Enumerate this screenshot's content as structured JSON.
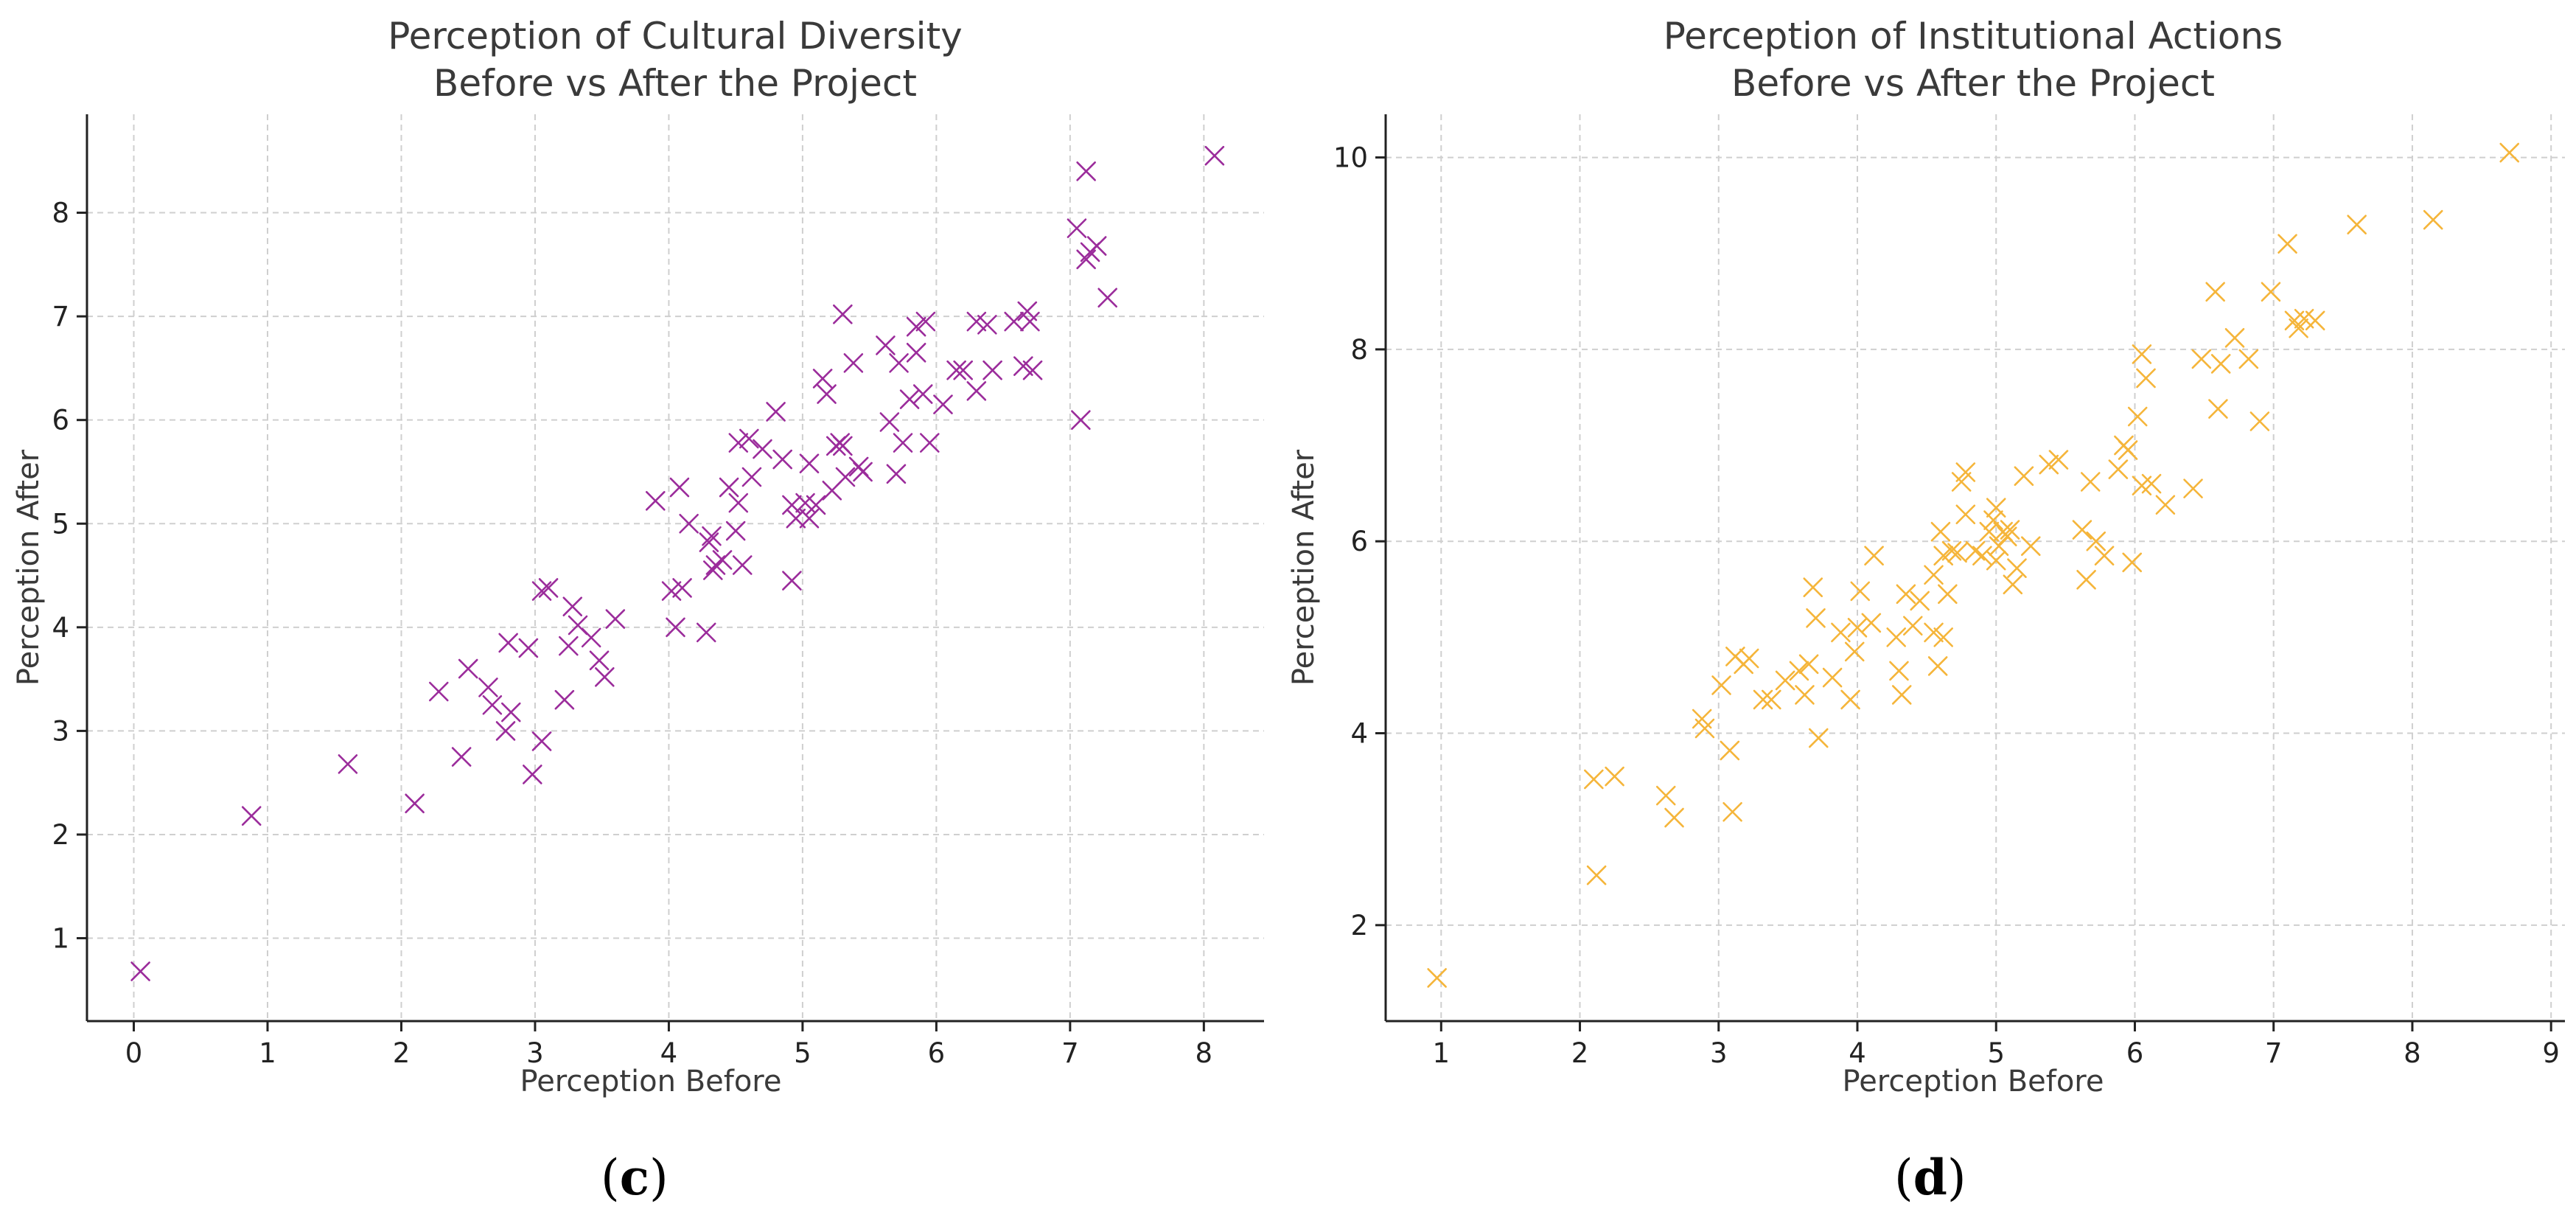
{
  "chart_data": [
    {
      "id": "c",
      "type": "scatter",
      "panel_label": "c",
      "title": "Perception of Cultural Diversity",
      "subtitle": "Before vs After the Project",
      "xlabel": "Perception Before",
      "ylabel": "Perception After",
      "xlim": [
        -0.35,
        8.45
      ],
      "ylim": [
        0.2,
        8.95
      ],
      "xticks": [
        0,
        1,
        2,
        3,
        4,
        5,
        6,
        7,
        8
      ],
      "yticks": [
        1,
        2,
        3,
        4,
        5,
        6,
        7,
        8
      ],
      "grid": true,
      "marker": "x",
      "color": "#9b2c9b",
      "x": [
        0.05,
        0.88,
        1.6,
        2.1,
        2.28,
        2.45,
        2.5,
        2.65,
        2.68,
        2.78,
        2.8,
        2.82,
        2.95,
        2.98,
        3.05,
        3.05,
        3.1,
        3.22,
        3.25,
        3.28,
        3.32,
        3.42,
        3.48,
        3.52,
        3.6,
        3.9,
        4.02,
        4.05,
        4.08,
        4.1,
        4.15,
        4.28,
        4.3,
        4.32,
        4.33,
        4.35,
        4.4,
        4.45,
        4.5,
        4.52,
        4.52,
        4.55,
        4.6,
        4.62,
        4.7,
        4.8,
        4.85,
        4.92,
        4.92,
        4.95,
        5.02,
        5.05,
        5.05,
        5.1,
        5.15,
        5.18,
        5.22,
        5.25,
        5.28,
        5.3,
        5.3,
        5.32,
        5.38,
        5.42,
        5.45,
        5.62,
        5.65,
        5.7,
        5.72,
        5.75,
        5.8,
        5.85,
        5.85,
        5.9,
        5.92,
        5.95,
        6.05,
        6.15,
        6.2,
        6.3,
        6.3,
        6.38,
        6.42,
        6.58,
        6.65,
        6.68,
        6.7,
        6.72,
        7.05,
        7.08,
        7.12,
        7.12,
        7.15,
        7.2,
        7.28,
        8.08
      ],
      "y": [
        0.68,
        2.18,
        2.68,
        2.3,
        3.38,
        2.75,
        3.6,
        3.42,
        3.25,
        3.0,
        3.85,
        3.18,
        3.8,
        2.58,
        4.35,
        2.9,
        4.38,
        3.3,
        3.82,
        4.2,
        4.02,
        3.9,
        3.68,
        3.52,
        4.08,
        5.22,
        4.35,
        4.0,
        5.35,
        4.38,
        5.0,
        3.95,
        4.82,
        4.88,
        4.55,
        4.6,
        4.65,
        5.35,
        4.93,
        5.2,
        5.78,
        4.6,
        5.82,
        5.45,
        5.72,
        6.08,
        5.62,
        4.45,
        5.18,
        5.05,
        5.2,
        5.05,
        5.58,
        5.18,
        6.4,
        6.25,
        5.32,
        5.75,
        5.78,
        7.02,
        5.75,
        5.45,
        6.55,
        5.55,
        5.5,
        6.72,
        5.98,
        5.48,
        6.55,
        5.78,
        6.2,
        6.9,
        6.65,
        6.25,
        6.95,
        5.78,
        6.15,
        6.48,
        6.48,
        6.95,
        6.28,
        6.92,
        6.48,
        6.95,
        6.52,
        7.05,
        6.95,
        6.48,
        7.85,
        6.0,
        8.4,
        7.55,
        7.62,
        7.68,
        7.18,
        8.55
      ]
    },
    {
      "id": "d",
      "type": "scatter",
      "panel_label": "d",
      "title": "Perception of Institutional Actions",
      "subtitle": "Before vs After the Project",
      "xlabel": "Perception Before",
      "ylabel": "Perception After",
      "xlim": [
        0.6,
        9.1
      ],
      "ylim": [
        1.0,
        10.45
      ],
      "xticks": [
        1,
        2,
        3,
        4,
        5,
        6,
        7,
        8,
        9
      ],
      "yticks": [
        2,
        4,
        6,
        8,
        10
      ],
      "grid": true,
      "marker": "x",
      "color": "#f5b53a",
      "x": [
        0.97,
        2.1,
        2.12,
        2.25,
        2.62,
        2.68,
        2.88,
        2.9,
        3.02,
        3.08,
        3.1,
        3.12,
        3.18,
        3.22,
        3.32,
        3.38,
        3.48,
        3.58,
        3.62,
        3.65,
        3.68,
        3.7,
        3.72,
        3.82,
        3.88,
        3.95,
        3.98,
        4.0,
        4.02,
        4.1,
        4.12,
        4.28,
        4.3,
        4.32,
        4.35,
        4.4,
        4.45,
        4.55,
        4.55,
        4.58,
        4.6,
        4.62,
        4.62,
        4.65,
        4.68,
        4.72,
        4.75,
        4.78,
        4.78,
        4.85,
        4.9,
        4.95,
        4.98,
        5.0,
        5.0,
        5.02,
        5.05,
        5.08,
        5.1,
        5.12,
        5.15,
        5.2,
        5.25,
        5.38,
        5.45,
        5.62,
        5.65,
        5.68,
        5.72,
        5.78,
        5.88,
        5.92,
        5.95,
        5.98,
        6.02,
        6.05,
        6.05,
        6.08,
        6.12,
        6.22,
        6.42,
        6.48,
        6.58,
        6.6,
        6.62,
        6.72,
        6.82,
        6.9,
        6.98,
        7.1,
        7.15,
        7.18,
        7.22,
        7.3,
        7.6,
        8.15,
        8.7
      ],
      "y": [
        1.45,
        3.52,
        2.52,
        3.55,
        3.35,
        3.12,
        4.15,
        4.05,
        4.5,
        3.82,
        3.18,
        4.8,
        4.72,
        4.78,
        4.35,
        4.35,
        4.55,
        4.65,
        4.4,
        4.72,
        5.52,
        5.2,
        3.95,
        4.58,
        5.05,
        4.35,
        4.85,
        5.1,
        5.48,
        5.15,
        5.85,
        5.0,
        4.65,
        4.4,
        5.45,
        5.12,
        5.38,
        5.05,
        5.65,
        4.7,
        6.1,
        5.0,
        5.85,
        5.45,
        5.9,
        5.88,
        6.62,
        6.72,
        6.28,
        5.9,
        5.85,
        6.1,
        6.22,
        6.35,
        5.8,
        5.95,
        6.1,
        6.05,
        6.12,
        5.55,
        5.72,
        6.68,
        5.95,
        6.8,
        6.85,
        6.12,
        5.6,
        6.62,
        6.0,
        5.85,
        6.75,
        7.0,
        6.95,
        5.78,
        7.3,
        6.58,
        7.95,
        7.7,
        6.6,
        6.38,
        6.55,
        7.9,
        8.6,
        7.38,
        7.85,
        8.12,
        7.9,
        7.25,
        8.6,
        9.1,
        8.3,
        8.22,
        8.32,
        8.3,
        9.3,
        9.35,
        10.05
      ]
    }
  ]
}
